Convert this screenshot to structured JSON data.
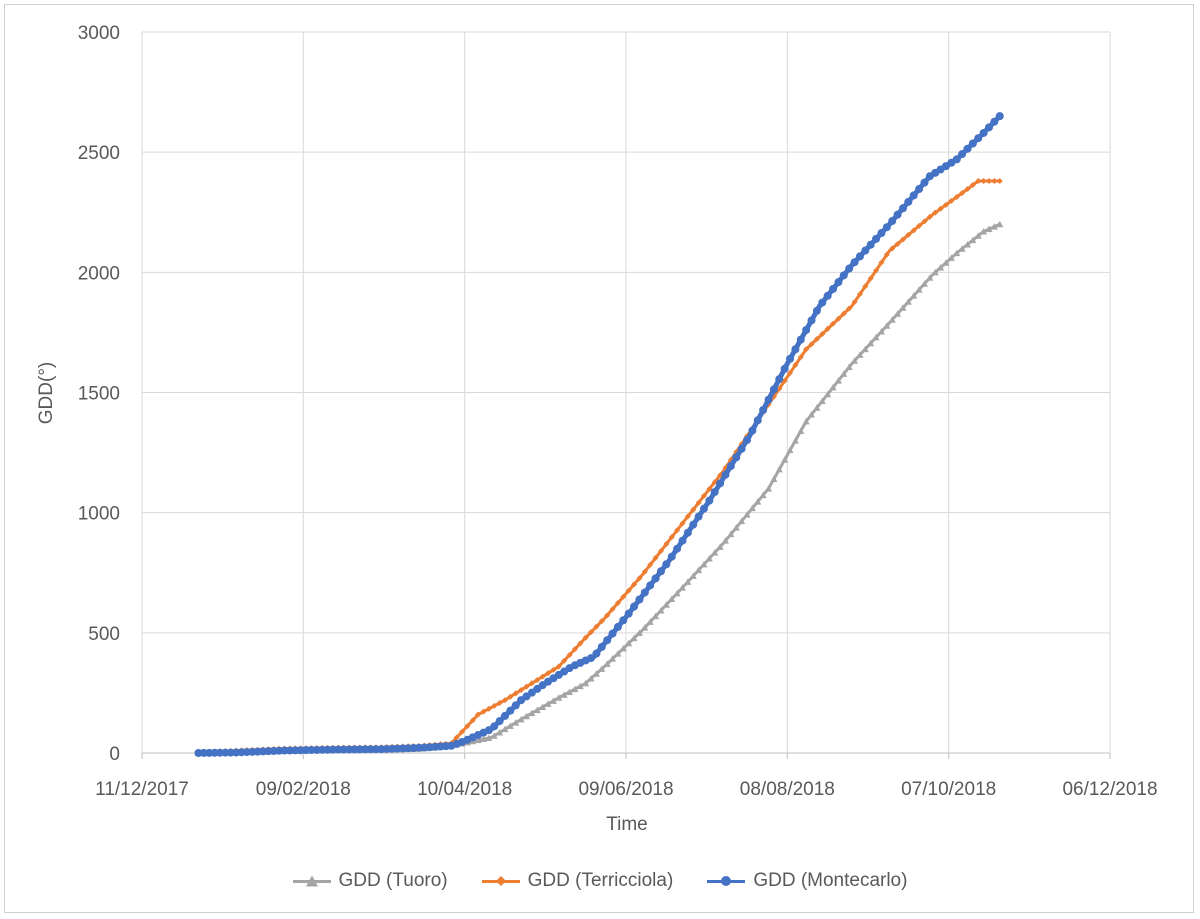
{
  "chart_data": {
    "type": "line",
    "title": "",
    "xlabel": "Time",
    "ylabel": "GDD(°)",
    "ylim": [
      0,
      3000
    ],
    "yticks": [
      0,
      500,
      1000,
      1500,
      2000,
      2500,
      3000
    ],
    "xlim": [
      "2017-12-11",
      "2018-12-06"
    ],
    "xticks": [
      "2017-12-11",
      "2018-02-09",
      "2018-04-10",
      "2018-06-09",
      "2018-08-08",
      "2018-10-07",
      "2018-12-06"
    ],
    "xtick_labels": [
      "11/12/2017",
      "09/02/2018",
      "10/04/2018",
      "09/06/2018",
      "08/08/2018",
      "07/10/2018",
      "06/12/2018"
    ],
    "grid": true,
    "legend_position": "bottom",
    "series": [
      {
        "name": "GDD (Tuoro)",
        "color": "#a5a5a5",
        "marker": "triangle",
        "points": [
          [
            "2018-01-01",
            0
          ],
          [
            "2018-01-15",
            3
          ],
          [
            "2018-02-01",
            8
          ],
          [
            "2018-02-20",
            12
          ],
          [
            "2018-03-10",
            14
          ],
          [
            "2018-03-25",
            18
          ],
          [
            "2018-04-05",
            30
          ],
          [
            "2018-04-20",
            65
          ],
          [
            "2018-05-01",
            140
          ],
          [
            "2018-05-15",
            230
          ],
          [
            "2018-05-25",
            290
          ],
          [
            "2018-06-01",
            360
          ],
          [
            "2018-06-15",
            510
          ],
          [
            "2018-07-01",
            700
          ],
          [
            "2018-07-15",
            870
          ],
          [
            "2018-08-01",
            1100
          ],
          [
            "2018-08-15",
            1380
          ],
          [
            "2018-09-01",
            1620
          ],
          [
            "2018-09-15",
            1790
          ],
          [
            "2018-10-01",
            1990
          ],
          [
            "2018-10-10",
            2080
          ],
          [
            "2018-10-20",
            2170
          ],
          [
            "2018-10-26",
            2200
          ]
        ]
      },
      {
        "name": "GDD (Terricciola)",
        "color": "#ed7d31",
        "marker": "diamond",
        "points": [
          [
            "2018-01-01",
            0
          ],
          [
            "2018-01-15",
            10
          ],
          [
            "2018-02-01",
            18
          ],
          [
            "2018-02-20",
            22
          ],
          [
            "2018-03-10",
            24
          ],
          [
            "2018-03-25",
            30
          ],
          [
            "2018-04-05",
            40
          ],
          [
            "2018-04-15",
            160
          ],
          [
            "2018-04-25",
            220
          ],
          [
            "2018-05-05",
            290
          ],
          [
            "2018-05-15",
            360
          ],
          [
            "2018-05-25",
            480
          ],
          [
            "2018-06-01",
            560
          ],
          [
            "2018-06-15",
            740
          ],
          [
            "2018-07-01",
            970
          ],
          [
            "2018-07-15",
            1170
          ],
          [
            "2018-08-01",
            1450
          ],
          [
            "2018-08-15",
            1680
          ],
          [
            "2018-09-01",
            1860
          ],
          [
            "2018-09-15",
            2090
          ],
          [
            "2018-10-01",
            2240
          ],
          [
            "2018-10-12",
            2330
          ],
          [
            "2018-10-18",
            2380
          ],
          [
            "2018-10-26",
            2380
          ]
        ]
      },
      {
        "name": "GDD (Montecarlo)",
        "color": "#4472c4",
        "marker": "circle",
        "points": [
          [
            "2018-01-01",
            0
          ],
          [
            "2018-01-15",
            2
          ],
          [
            "2018-02-01",
            10
          ],
          [
            "2018-02-20",
            14
          ],
          [
            "2018-03-10",
            16
          ],
          [
            "2018-03-25",
            22
          ],
          [
            "2018-04-05",
            30
          ],
          [
            "2018-04-10",
            50
          ],
          [
            "2018-04-20",
            100
          ],
          [
            "2018-05-01",
            220
          ],
          [
            "2018-05-10",
            290
          ],
          [
            "2018-05-20",
            360
          ],
          [
            "2018-05-28",
            400
          ],
          [
            "2018-06-10",
            580
          ],
          [
            "2018-06-25",
            800
          ],
          [
            "2018-07-10",
            1050
          ],
          [
            "2018-07-25",
            1320
          ],
          [
            "2018-08-08",
            1620
          ],
          [
            "2018-08-20",
            1860
          ],
          [
            "2018-09-01",
            2030
          ],
          [
            "2018-09-15",
            2200
          ],
          [
            "2018-09-30",
            2400
          ],
          [
            "2018-10-10",
            2470
          ],
          [
            "2018-10-20",
            2580
          ],
          [
            "2018-10-26",
            2650
          ]
        ]
      }
    ]
  }
}
